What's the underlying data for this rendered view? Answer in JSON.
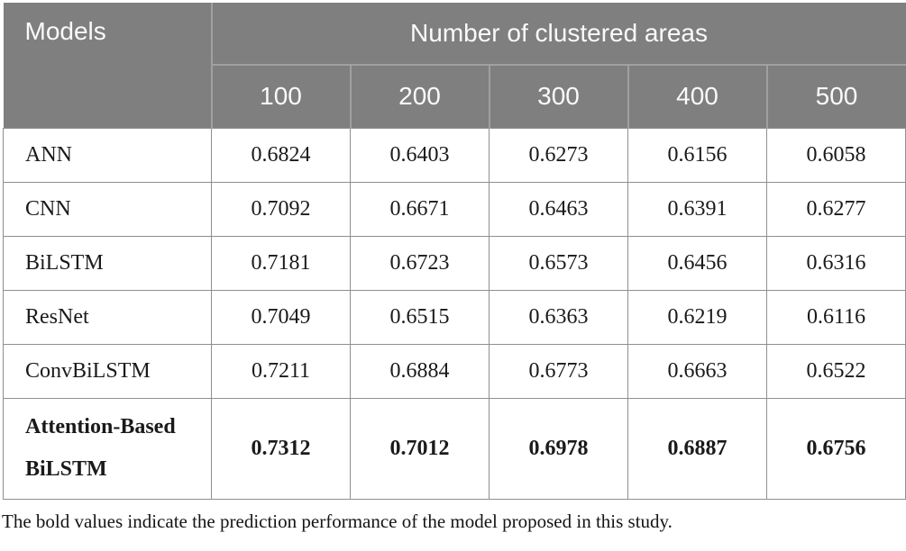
{
  "table": {
    "header": {
      "models_label": "Models",
      "group_label": "Number of clustered areas",
      "columns": [
        "100",
        "200",
        "300",
        "400",
        "500"
      ]
    },
    "rows": [
      {
        "model": "ANN",
        "bold": false,
        "values": [
          "0.6824",
          "0.6403",
          "0.6273",
          "0.6156",
          "0.6058"
        ]
      },
      {
        "model": "CNN",
        "bold": false,
        "values": [
          "0.7092",
          "0.6671",
          "0.6463",
          "0.6391",
          "0.6277"
        ]
      },
      {
        "model": "BiLSTM",
        "bold": false,
        "values": [
          "0.7181",
          "0.6723",
          "0.6573",
          "0.6456",
          "0.6316"
        ]
      },
      {
        "model": "ResNet",
        "bold": false,
        "values": [
          "0.7049",
          "0.6515",
          "0.6363",
          "0.6219",
          "0.6116"
        ]
      },
      {
        "model": "ConvBiLSTM",
        "bold": false,
        "values": [
          "0.7211",
          "0.6884",
          "0.6773",
          "0.6663",
          "0.6522"
        ]
      },
      {
        "model": "Attention-Based BiLSTM",
        "bold": true,
        "values": [
          "0.7312",
          "0.7012",
          "0.6978",
          "0.6887",
          "0.6756"
        ]
      }
    ],
    "footnote": "The bold values indicate the prediction performance of the model proposed in this study."
  },
  "colors": {
    "header_background": "#7f7f7f",
    "header_text": "#fafafa",
    "header_divider": "#a0a0a0",
    "grid_border": "#8f8f8f",
    "body_text": "#1a1a1a"
  }
}
